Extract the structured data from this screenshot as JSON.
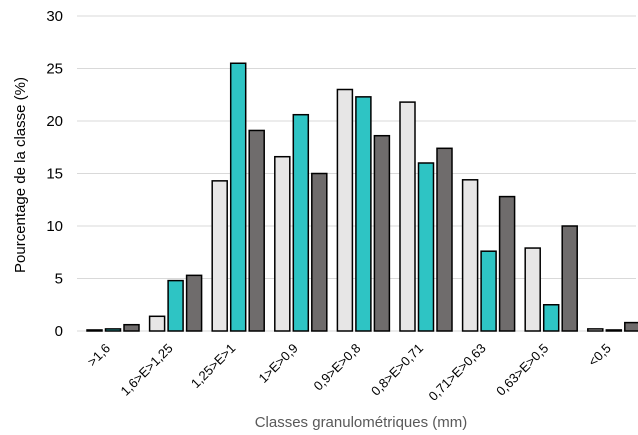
{
  "chart_data": {
    "type": "bar",
    "categories": [
      ">1,6",
      "1,6>E>1,25",
      "1,25>E>1",
      "1>E>0,9",
      "0,9>E>0,8",
      "0,8>E>0,71",
      "0,71>E>0,63",
      "0,63>E>0,5",
      "<0,5"
    ],
    "series": [
      {
        "color": "#e7e6e6",
        "values": [
          0.1,
          1.4,
          14.3,
          16.6,
          23.0,
          21.8,
          14.4,
          7.9,
          0.2
        ]
      },
      {
        "color": "#2ec4c4",
        "values": [
          0.2,
          4.8,
          25.5,
          20.6,
          22.3,
          16.0,
          7.6,
          2.5,
          0.1
        ]
      },
      {
        "color": "#6f6c6c",
        "values": [
          0.6,
          5.3,
          19.1,
          15.0,
          18.6,
          17.4,
          12.8,
          10.0,
          0.8
        ]
      }
    ],
    "yticks": [
      "0",
      "5",
      "10",
      "15",
      "20",
      "25",
      "30"
    ],
    "ylim": [
      0,
      30
    ],
    "ylabel": "Pourcentage de la classe (%)",
    "xlabel": "Classes granulométriques (mm)",
    "grid": true
  }
}
